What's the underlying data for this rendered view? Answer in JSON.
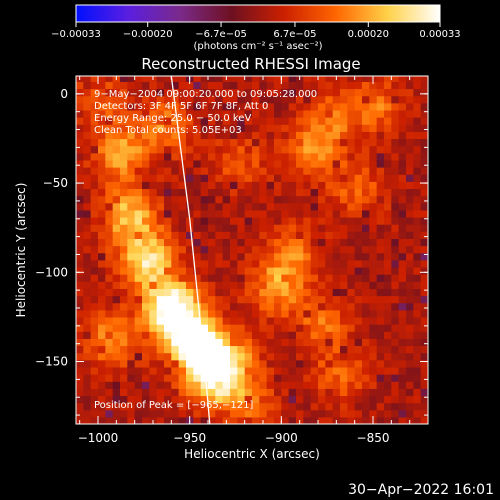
{
  "chart_data": {
    "type": "heatmap",
    "title": "Reconstructed RHESSI Image",
    "xlabel": "Heliocentric X (arcsec)",
    "ylabel": "Heliocentric Y (arcsec)",
    "xlim": [
      -1012,
      -820
    ],
    "ylim": [
      -185,
      10
    ],
    "xticks": [
      -1000,
      -950,
      -900,
      -850
    ],
    "xtick_labels": [
      "−1000",
      "−950",
      "−900",
      "−850"
    ],
    "yticks": [
      0,
      -50,
      -100,
      -150
    ],
    "ytick_labels": [
      "0",
      "−50",
      "−100",
      "−150"
    ],
    "colorbar": {
      "range": [
        -0.00033,
        0.00033
      ],
      "ticks": [
        -0.00033,
        -0.0002,
        -6.7e-05,
        6.7e-05,
        0.0002,
        0.00033
      ],
      "tick_labels": [
        "−0.00033",
        "−0.00020",
        "−6.7e−05",
        "6.7e−05",
        "0.00020",
        "0.00033"
      ],
      "unit_label": "(photons cm⁻² s⁻¹ asec⁻²)",
      "colors": [
        "#0010ff",
        "#5a1ee0",
        "#7a2a8a",
        "#6e1020",
        "#cc2000",
        "#ff6600",
        "#ffd24a",
        "#ffffff"
      ]
    },
    "annotations": [
      "9−May−2004 09:00:20.000 to 09:05:28.000",
      "Detectors: 3F 4F 5F 6F 7F 8F, Att 0",
      "Energy Range: 25.0 − 50.0 keV",
      "Clean    Total counts: 5.05E+03"
    ],
    "peak_label": "Position of Peak = [−965,−121]",
    "hotspots": [
      {
        "x": -962,
        "y": -122,
        "v": 1.0
      },
      {
        "x": -950,
        "y": -140,
        "v": 0.95
      },
      {
        "x": -940,
        "y": -160,
        "v": 0.9
      },
      {
        "x": -975,
        "y": -95,
        "v": 0.75
      },
      {
        "x": -985,
        "y": -70,
        "v": 0.65
      },
      {
        "x": -990,
        "y": -35,
        "v": 0.55
      },
      {
        "x": -965,
        "y": -20,
        "v": 0.45
      },
      {
        "x": -995,
        "y": -140,
        "v": 0.5
      },
      {
        "x": -930,
        "y": -150,
        "v": 0.45
      },
      {
        "x": -905,
        "y": -110,
        "v": 0.5
      },
      {
        "x": -895,
        "y": -90,
        "v": 0.4
      },
      {
        "x": -885,
        "y": -35,
        "v": 0.45
      },
      {
        "x": -875,
        "y": -15,
        "v": 0.35
      },
      {
        "x": -850,
        "y": -8,
        "v": 0.4
      },
      {
        "x": -860,
        "y": -55,
        "v": 0.35
      },
      {
        "x": -880,
        "y": -130,
        "v": 0.4
      },
      {
        "x": -870,
        "y": -160,
        "v": 0.35
      },
      {
        "x": -1000,
        "y": -5,
        "v": 0.3
      },
      {
        "x": -925,
        "y": -40,
        "v": 0.3
      },
      {
        "x": -920,
        "y": -175,
        "v": 0.35
      }
    ],
    "limb_curve": [
      {
        "x": -960,
        "y": 10
      },
      {
        "x": -955,
        "y": -30
      },
      {
        "x": -950,
        "y": -70
      },
      {
        "x": -946,
        "y": -110
      },
      {
        "x": -942,
        "y": -150
      },
      {
        "x": -939,
        "y": -185
      }
    ]
  },
  "timestamp": "30−Apr−2022 16:01"
}
